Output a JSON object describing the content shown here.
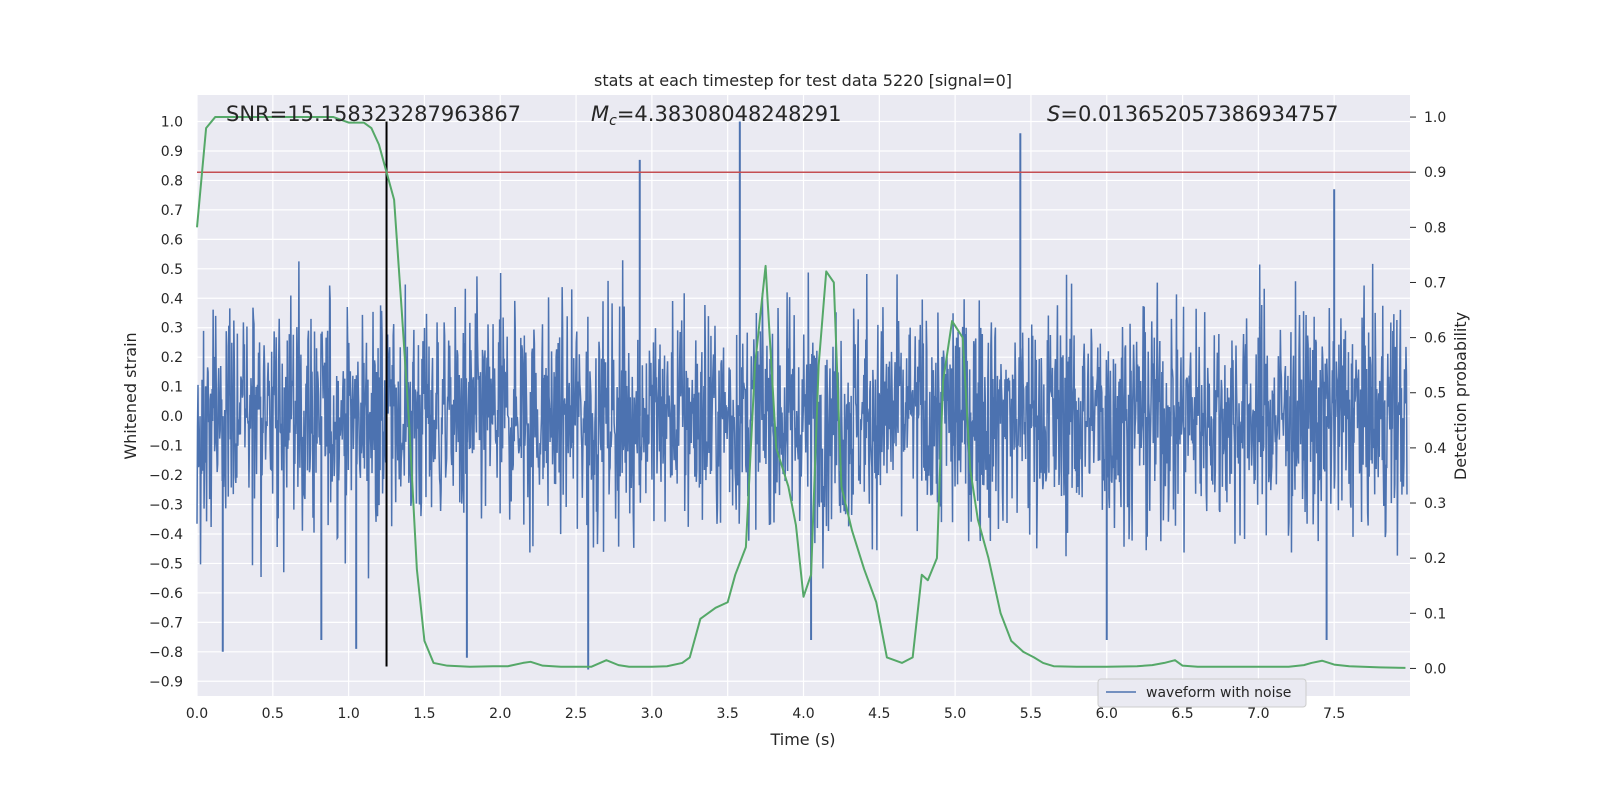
{
  "chart_data": {
    "type": "line",
    "title": "stats at each timestep for test data 5220 [signal=0]",
    "xlabel": "Time (s)",
    "ylabel_left": "Whitened strain",
    "ylabel_right": "Detection probability",
    "xlim": [
      0.0,
      8.0
    ],
    "ylim_left": [
      -0.95,
      1.09
    ],
    "ylim_right": [
      -0.05,
      1.04
    ],
    "x_ticks": [
      "0.0",
      "0.5",
      "1.0",
      "1.5",
      "2.0",
      "2.5",
      "3.0",
      "3.5",
      "4.0",
      "4.5",
      "5.0",
      "5.5",
      "6.0",
      "6.5",
      "7.0",
      "7.5"
    ],
    "y_left_ticks": [
      "1.0",
      "0.9",
      "0.8",
      "0.7",
      "0.6",
      "0.5",
      "0.4",
      "0.3",
      "0.2",
      "0.1",
      "0.0",
      "-0.1",
      "-0.2",
      "-0.3",
      "-0.4",
      "-0.5",
      "-0.6",
      "-0.7",
      "-0.8",
      "-0.9"
    ],
    "y_right_ticks": [
      "1.0",
      "0.9",
      "0.8",
      "0.7",
      "0.6",
      "0.5",
      "0.4",
      "0.3",
      "0.2",
      "0.1",
      "0.0"
    ],
    "grid": true,
    "legend_position": "lower-right",
    "annotations": {
      "snr": "SNR=15.158323287963867",
      "mc_label": "M",
      "mc_sub": "c",
      "mc_value": "=4.38308048248291",
      "s_label": "S",
      "s_value": "=0.013652057386934757"
    },
    "series": [
      {
        "name": "waveform with noise",
        "color": "#4c72b0",
        "kind": "noisy_waveform",
        "envelope": [
          0.45,
          -0.5
        ],
        "peaks": [
          {
            "x": 0.17,
            "y": -0.8
          },
          {
            "x": 0.82,
            "y": -0.76
          },
          {
            "x": 1.05,
            "y": -0.79
          },
          {
            "x": 1.78,
            "y": -0.82
          },
          {
            "x": 2.58,
            "y": -0.86
          },
          {
            "x": 2.92,
            "y": 0.87
          },
          {
            "x": 3.58,
            "y": 1.0
          },
          {
            "x": 4.05,
            "y": -0.76
          },
          {
            "x": 5.43,
            "y": 0.96
          },
          {
            "x": 6.0,
            "y": -0.76
          },
          {
            "x": 7.45,
            "y": -0.76
          },
          {
            "x": 7.5,
            "y": 0.77
          }
        ]
      },
      {
        "name": "Detection probability",
        "color": "#55a868",
        "axis": "right",
        "x": [
          0.0,
          0.06,
          0.12,
          0.2,
          0.3,
          0.4,
          0.5,
          0.6,
          0.7,
          0.8,
          0.9,
          1.0,
          1.05,
          1.1,
          1.15,
          1.2,
          1.25,
          1.3,
          1.35,
          1.4,
          1.45,
          1.5,
          1.56,
          1.65,
          1.8,
          1.95,
          2.05,
          2.15,
          2.2,
          2.28,
          2.4,
          2.55,
          2.6,
          2.7,
          2.78,
          2.85,
          3.0,
          3.1,
          3.2,
          3.25,
          3.32,
          3.42,
          3.5,
          3.55,
          3.62,
          3.68,
          3.75,
          3.82,
          3.9,
          3.95,
          4.0,
          4.05,
          4.1,
          4.15,
          4.2,
          4.25,
          4.32,
          4.4,
          4.48,
          4.55,
          4.65,
          4.72,
          4.78,
          4.82,
          4.88,
          4.92,
          4.98,
          5.05,
          5.1,
          5.15,
          5.22,
          5.3,
          5.37,
          5.45,
          5.52,
          5.58,
          5.65,
          5.8,
          6.0,
          6.2,
          6.3,
          6.38,
          6.45,
          6.5,
          6.6,
          6.8,
          7.0,
          7.2,
          7.3,
          7.35,
          7.42,
          7.5,
          7.6,
          7.8,
          7.97
        ],
        "y": [
          0.8,
          0.98,
          1.0,
          1.0,
          1.0,
          1.0,
          1.0,
          1.0,
          1.0,
          1.0,
          1.0,
          0.99,
          0.99,
          0.99,
          0.98,
          0.95,
          0.9,
          0.85,
          0.65,
          0.44,
          0.18,
          0.05,
          0.01,
          0.005,
          0.003,
          0.004,
          0.004,
          0.01,
          0.012,
          0.005,
          0.003,
          0.003,
          0.003,
          0.015,
          0.006,
          0.003,
          0.003,
          0.004,
          0.01,
          0.02,
          0.09,
          0.11,
          0.12,
          0.17,
          0.22,
          0.55,
          0.73,
          0.4,
          0.33,
          0.26,
          0.13,
          0.17,
          0.55,
          0.72,
          0.7,
          0.33,
          0.25,
          0.18,
          0.12,
          0.02,
          0.01,
          0.02,
          0.17,
          0.16,
          0.2,
          0.52,
          0.63,
          0.6,
          0.36,
          0.27,
          0.2,
          0.1,
          0.05,
          0.03,
          0.02,
          0.01,
          0.004,
          0.003,
          0.003,
          0.004,
          0.006,
          0.01,
          0.015,
          0.005,
          0.003,
          0.003,
          0.003,
          0.003,
          0.006,
          0.01,
          0.014,
          0.007,
          0.004,
          0.002,
          0.001
        ]
      }
    ],
    "reference_lines": {
      "threshold_color": "#c44e52",
      "threshold_right_value": 0.9,
      "time_marker_color": "#000000",
      "time_marker_x": 1.25,
      "time_marker_y_top": 1.0,
      "time_marker_y_bottom": -0.85
    },
    "background_color": "#eaeaf2"
  }
}
